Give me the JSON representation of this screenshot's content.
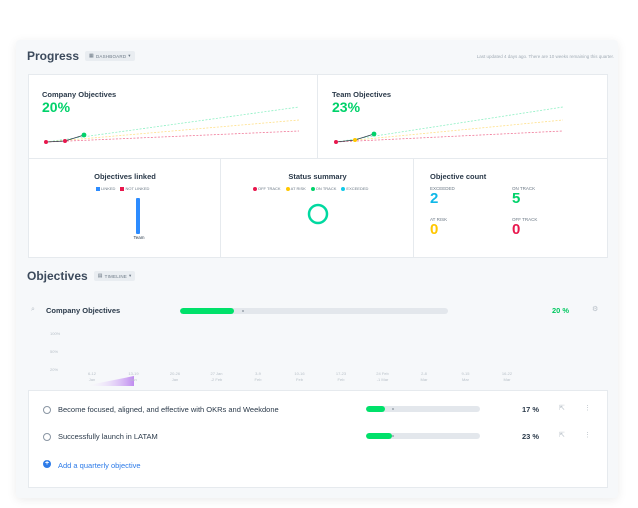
{
  "progress": {
    "title": "Progress",
    "view_pill": "DASHBOARD",
    "updated_text": "Last updated 4 days ago. There are 10 weeks remaining this quarter."
  },
  "company_objectives_card": {
    "title": "Company Objectives",
    "value": "20%"
  },
  "team_objectives_card": {
    "title": "Team Objectives",
    "value": "23%"
  },
  "objectives_linked": {
    "title": "Objectives linked",
    "legend": [
      {
        "label": "LINKED",
        "color": "#2d8cff"
      },
      {
        "label": "NOT LINKED",
        "color": "#e8174d"
      }
    ],
    "bar_label": "Team"
  },
  "status_summary": {
    "title": "Status summary",
    "legend": [
      {
        "label": "OFF TRACK",
        "color": "#e8174d"
      },
      {
        "label": "AT RISK",
        "color": "#ffc700"
      },
      {
        "label": "ON TRACK",
        "color": "#00d26a"
      },
      {
        "label": "EXCEEDED",
        "color": "#10c9e8"
      }
    ]
  },
  "objective_count": {
    "title": "Objective count",
    "items": [
      {
        "label": "EXCEEDED",
        "value": "2",
        "color": "#10b8e8"
      },
      {
        "label": "ON TRACK",
        "value": "5",
        "color": "#00d26a"
      },
      {
        "label": "AT RISK",
        "value": "0",
        "color": "#ffc700"
      },
      {
        "label": "OFF TRACK",
        "value": "0",
        "color": "#e8174d"
      }
    ]
  },
  "objectives": {
    "title": "Objectives",
    "view_pill": "TIMELINE",
    "company_row": {
      "label": "Company Objectives",
      "pct": "20 %",
      "progress": 0.2
    },
    "timeline": {
      "y_labels": [
        "100%",
        "50%",
        "20%"
      ],
      "x_labels": [
        [
          "6-12",
          "Jan"
        ],
        [
          "13-19",
          "Jan"
        ],
        [
          "20-26",
          "Jan"
        ],
        [
          "27 Jan",
          "-2 Feb"
        ],
        [
          "3-9",
          "Feb"
        ],
        [
          "10-16",
          "Feb"
        ],
        [
          "17-23",
          "Feb"
        ],
        [
          "24 Feb",
          "-1 Mar"
        ],
        [
          "2-8",
          "Mar"
        ],
        [
          "9-15",
          "Mar"
        ],
        [
          "16-22",
          "Mar"
        ]
      ]
    },
    "items": [
      {
        "label": "Become focused, aligned, and effective with OKRs and Weekdone",
        "pct": "17 %",
        "progress": 0.17
      },
      {
        "label": "Successfully launch in LATAM",
        "pct": "23 %",
        "progress": 0.23
      }
    ],
    "add_label": "Add a quarterly objective"
  }
}
